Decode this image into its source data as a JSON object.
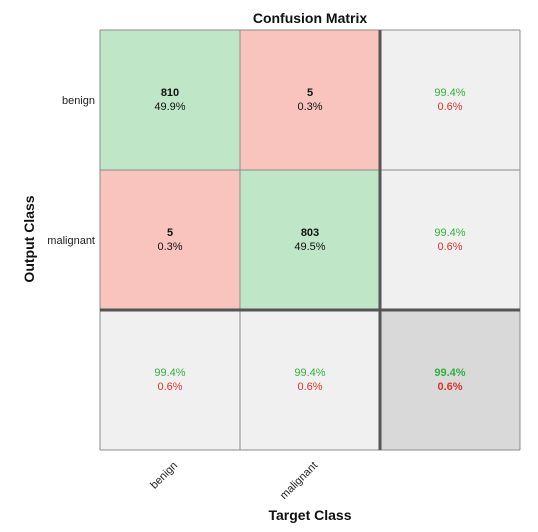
{
  "chart_data": {
    "type": "heatmap",
    "title": "Confusion Matrix",
    "xlabel": "Target Class",
    "ylabel": "Output Class",
    "classes": [
      "benign",
      "malignant"
    ],
    "counts": [
      [
        810,
        5
      ],
      [
        5,
        803
      ]
    ],
    "cell_percent": [
      [
        "49.9%",
        "0.3%"
      ],
      [
        "0.3%",
        "49.5%"
      ]
    ],
    "row_summary": [
      {
        "correct": "99.4%",
        "wrong": "0.6%"
      },
      {
        "correct": "99.4%",
        "wrong": "0.6%"
      }
    ],
    "col_summary": [
      {
        "correct": "99.4%",
        "wrong": "0.6%"
      },
      {
        "correct": "99.4%",
        "wrong": "0.6%"
      }
    ],
    "overall": {
      "correct": "99.4%",
      "wrong": "0.6%"
    }
  },
  "colors": {
    "diagonal": "#bfe6c6",
    "offdiagonal": "#f9c4bd",
    "summary": "#f0f0f0",
    "overall": "#d9d9d9",
    "grid": "#8c8c8c",
    "thick": "#555555",
    "correct_text": "#2db33c",
    "wrong_text": "#e0322b"
  }
}
